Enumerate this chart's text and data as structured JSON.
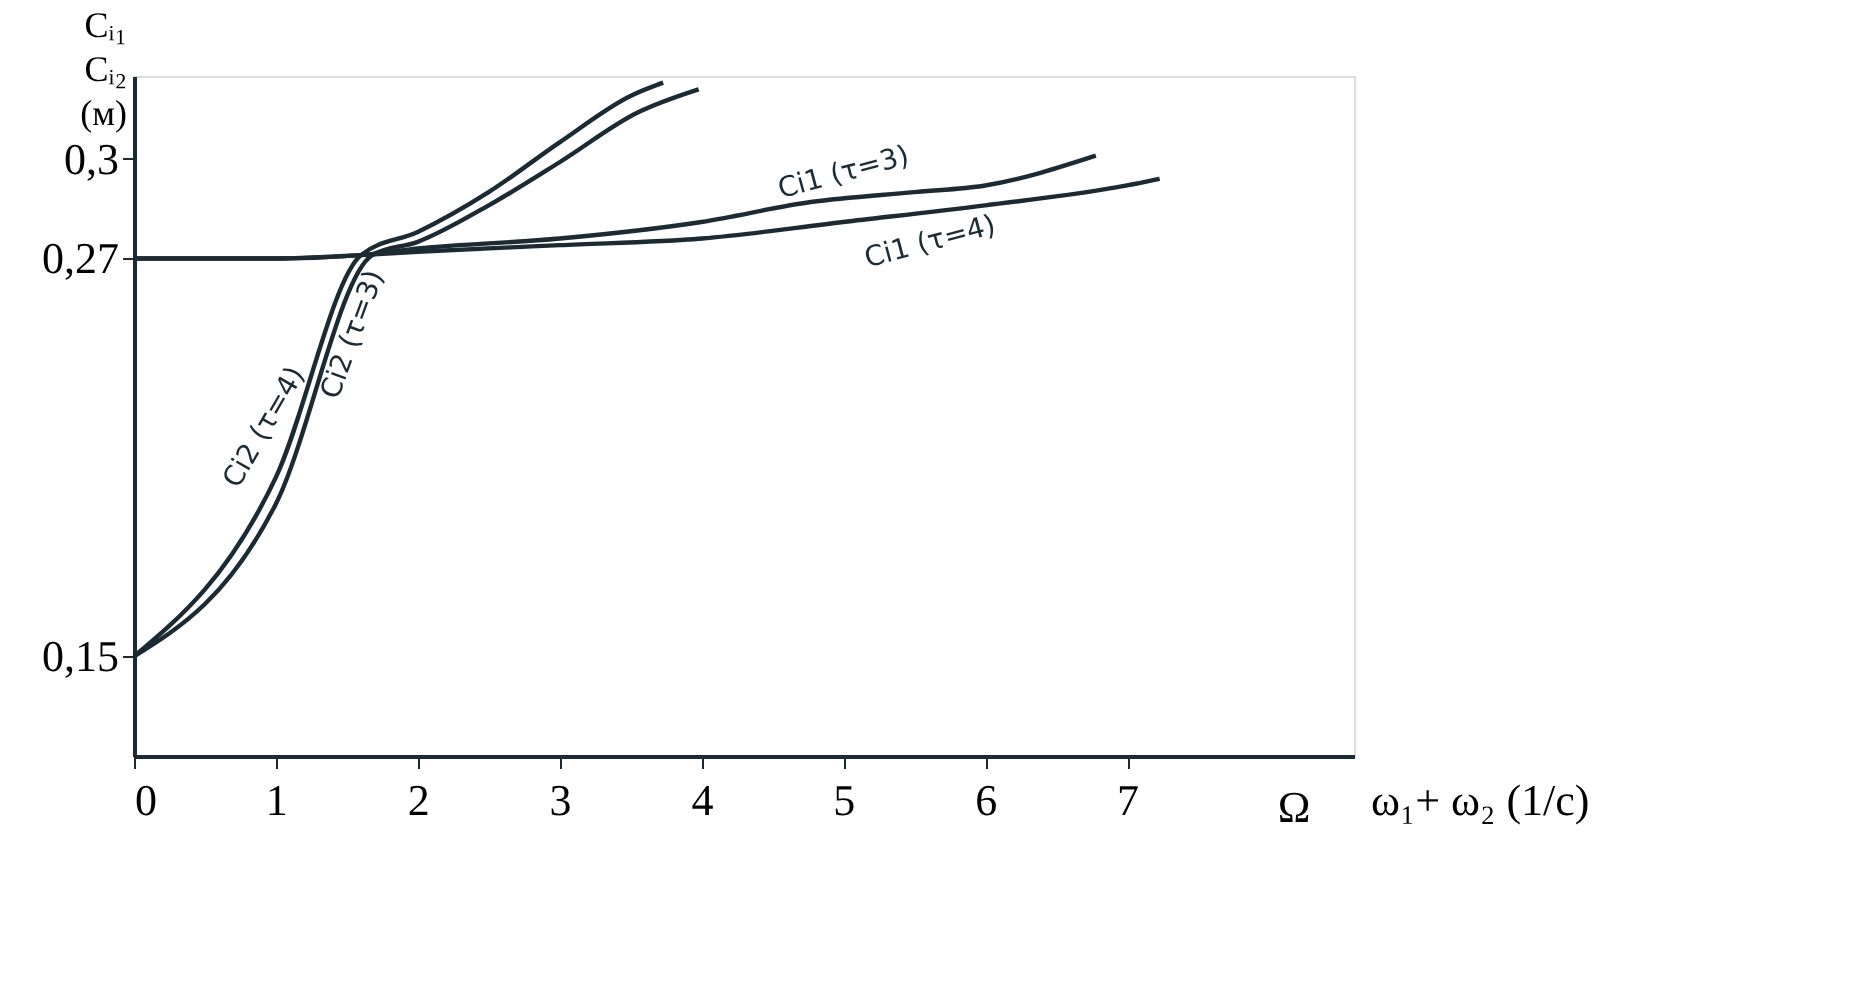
{
  "chart_data": {
    "type": "line",
    "xlabel": "ω₁+ ω₂  (1/c)",
    "ylabel": "Cᵢ₁\nCᵢ₂\n(м)",
    "annotations": [
      "Ω"
    ],
    "xlim": [
      0,
      8.6
    ],
    "xticks": [
      0,
      1,
      2,
      3,
      4,
      5,
      6,
      7
    ],
    "ylim": [
      0.12,
      0.325
    ],
    "yticks": [
      {
        "value": 0.15,
        "label": "0,15"
      },
      {
        "value": 0.27,
        "label": "0,27"
      },
      {
        "value": 0.3,
        "label": "0,3"
      }
    ],
    "grid": false,
    "legend": false,
    "marker": "none",
    "line_style": "solid",
    "series": [
      {
        "name": "Ci2 (τ=4)",
        "color": "#1c2b33",
        "x": [
          0,
          1,
          1.6,
          2,
          2.5,
          3,
          3.5,
          3.73
        ],
        "values": [
          0.15,
          0.204,
          0.271,
          0.278,
          0.29,
          0.305,
          0.319,
          0.323
        ]
      },
      {
        "name": "Ci2 (τ=3)",
        "color": "#1c2b33",
        "x": [
          0,
          1,
          1.68,
          2,
          2.5,
          3,
          3.55,
          3.98
        ],
        "values": [
          0.15,
          0.196,
          0.271,
          0.275,
          0.286,
          0.299,
          0.314,
          0.321
        ]
      },
      {
        "name": "Ci1 (τ=3)",
        "color": "#1c2b33",
        "x": [
          0,
          1,
          1.6,
          2,
          3,
          4,
          4.77,
          5.5,
          6,
          6.78
        ],
        "values": [
          0.27,
          0.27,
          0.271,
          0.273,
          0.276,
          0.281,
          0.287,
          0.29,
          0.292,
          0.301
        ]
      },
      {
        "name": "Ci1 (τ=4)",
        "color": "#1c2b33",
        "x": [
          0,
          1,
          1.6,
          2,
          3,
          4,
          5,
          6,
          7,
          7.23
        ],
        "values": [
          0.27,
          0.27,
          0.271,
          0.272,
          0.274,
          0.276,
          0.281,
          0.286,
          0.292,
          0.294
        ]
      }
    ]
  }
}
